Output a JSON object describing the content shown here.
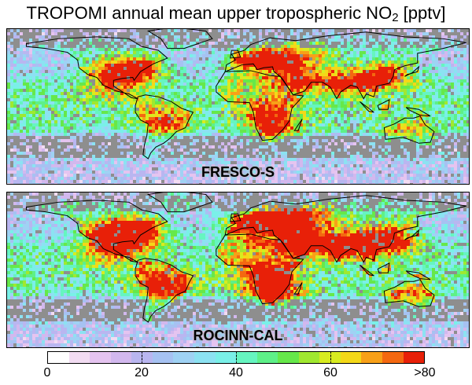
{
  "title": {
    "main": "TROPOMI annual mean upper tropospheric NO",
    "subscript": "2",
    "unit": "[pptv]"
  },
  "panels": [
    {
      "label": "FRESCO-S"
    },
    {
      "label": "ROCINN-CAL"
    }
  ],
  "colorbar": {
    "tick_labels": [
      "0",
      "20",
      "40",
      "60",
      ">80"
    ],
    "tick_values": [
      0,
      20,
      40,
      60,
      80
    ],
    "colors": [
      "#ffffff",
      "#f2dcf2",
      "#e5c4f0",
      "#d2b8ee",
      "#b9b6f0",
      "#a6c2f2",
      "#9fd2f4",
      "#8ce2f2",
      "#7af0e8",
      "#66f5c0",
      "#5ef088",
      "#66e84a",
      "#a0e830",
      "#d8ec20",
      "#f4d818",
      "#f8a018",
      "#f46810",
      "#e82008"
    ],
    "no_data_color": "#8e8e8e"
  }
}
